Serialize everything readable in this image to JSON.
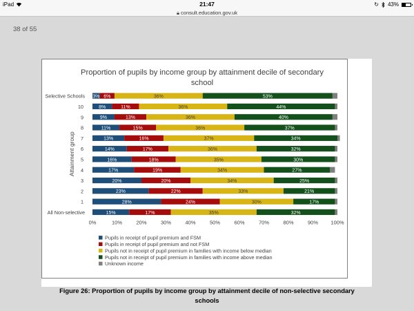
{
  "status_bar": {
    "device": "iPad",
    "time": "21:47",
    "battery": "43%",
    "battery_level": 0.43
  },
  "browser": {
    "url": "consult.education.gov.uk"
  },
  "viewer": {
    "page_indicator": "38 of 55"
  },
  "figure": {
    "caption_line1": "Figure 26: Proportion of pupils by income group by attainment decile of non-selective secondary",
    "caption_line2": "schools"
  },
  "chart_data": {
    "type": "bar",
    "orientation": "horizontal",
    "stacked": "100%",
    "title": "Proportion of pupils by income group by attainment decile of secondary school",
    "ylabel": "Attainment group",
    "xlabel": "",
    "xlim": [
      0,
      100
    ],
    "x_ticks": [
      "0%",
      "10%",
      "20%",
      "30%",
      "40%",
      "50%",
      "60%",
      "70%",
      "80%",
      "90%",
      "100%"
    ],
    "categories": [
      "Selective Schools",
      "10",
      "9",
      "8",
      "7",
      "6",
      "5",
      "4",
      "3",
      "2",
      "1",
      "All Non-selective"
    ],
    "series": [
      {
        "name": "Pupils in receipt of pupil premium and FSM",
        "color": "#1f4e79",
        "values": [
          3,
          8,
          9,
          11,
          13,
          14,
          16,
          17,
          20,
          23,
          28,
          15
        ]
      },
      {
        "name": "Pupils in receipt of pupil premium and not FSM",
        "color": "#a50d0d",
        "values": [
          6,
          11,
          13,
          15,
          16,
          17,
          18,
          19,
          20,
          22,
          24,
          17
        ]
      },
      {
        "name": "Pupils not in receipt of pupil premium in families with income below median",
        "color": "#d8b517",
        "values": [
          36,
          36,
          36,
          36,
          37,
          36,
          35,
          34,
          34,
          33,
          30,
          35
        ]
      },
      {
        "name": "Pupils not in receipt of pupil premium in families with income above median",
        "color": "#13501b",
        "values": [
          53,
          44,
          40,
          37,
          34,
          32,
          30,
          27,
          25,
          21,
          17,
          32
        ]
      },
      {
        "name": "Unknown income",
        "color": "#808080",
        "values": [
          2,
          1,
          2,
          1,
          1,
          1,
          1,
          2,
          1,
          1,
          1,
          1
        ]
      }
    ],
    "data_labels": [
      [
        "3%",
        "6%",
        "36%",
        "53%",
        ""
      ],
      [
        "8%",
        "11%",
        "36%",
        "44%",
        ""
      ],
      [
        "9%",
        "13%",
        "36%",
        "40%",
        ""
      ],
      [
        "11%",
        "15%",
        "36%",
        "37%",
        ""
      ],
      [
        "13%",
        "16%",
        "37%",
        "34%",
        ""
      ],
      [
        "14%",
        "17%",
        "36%",
        "32%",
        ""
      ],
      [
        "16%",
        "18%",
        "35%",
        "30%",
        ""
      ],
      [
        "17%",
        "19%",
        "34%",
        "27%",
        ""
      ],
      [
        "20%",
        "20%",
        "34%",
        "25%",
        ""
      ],
      [
        "23%",
        "22%",
        "33%",
        "21%",
        ""
      ],
      [
        "28%",
        "24%",
        "30%",
        "17%",
        ""
      ],
      [
        "15%",
        "17%",
        "35%",
        "32%",
        ""
      ]
    ],
    "legend_position": "bottom",
    "grid": false
  }
}
